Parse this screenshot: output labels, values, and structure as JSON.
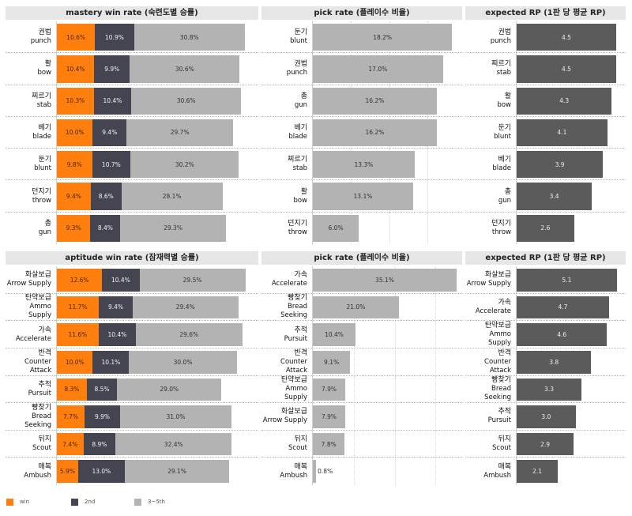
{
  "chart_data": [
    {
      "type": "bar",
      "subtype": "stacked-horizontal",
      "title": "mastery win rate (숙련도별 승률)",
      "categories": [
        {
          "ko": "권법",
          "en": "punch"
        },
        {
          "ko": "활",
          "en": "bow"
        },
        {
          "ko": "찌르기",
          "en": "stab"
        },
        {
          "ko": "베기",
          "en": "blade"
        },
        {
          "ko": "둔기",
          "en": "blunt"
        },
        {
          "ko": "던지기",
          "en": "throw"
        },
        {
          "ko": "총",
          "en": "gun"
        }
      ],
      "series": [
        {
          "name": "win",
          "values": [
            10.6,
            10.4,
            10.3,
            10.0,
            9.8,
            9.4,
            9.3
          ]
        },
        {
          "name": "2nd",
          "values": [
            10.9,
            9.9,
            10.4,
            9.4,
            10.7,
            8.6,
            8.4
          ]
        },
        {
          "name": "3~5th",
          "values": [
            30.8,
            30.6,
            30.6,
            29.7,
            30.2,
            28.1,
            29.3
          ]
        }
      ],
      "xlim": [
        0,
        55
      ]
    },
    {
      "type": "bar",
      "subtype": "horizontal",
      "title": "pick rate (플레이수 비율)",
      "categories": [
        {
          "ko": "둔기",
          "en": "blunt"
        },
        {
          "ko": "권법",
          "en": "punch"
        },
        {
          "ko": "총",
          "en": "gun"
        },
        {
          "ko": "베기",
          "en": "blade"
        },
        {
          "ko": "찌르기",
          "en": "stab"
        },
        {
          "ko": "활",
          "en": "bow"
        },
        {
          "ko": "던지기",
          "en": "throw"
        }
      ],
      "values": [
        18.2,
        17.0,
        16.2,
        16.2,
        13.3,
        13.1,
        6.0
      ],
      "xlim": [
        0,
        19
      ],
      "gridlines": [
        5,
        10,
        15
      ]
    },
    {
      "type": "bar",
      "subtype": "horizontal",
      "title": "expected RP (1판 당 평균 RP)",
      "categories": [
        {
          "ko": "권법",
          "en": "punch"
        },
        {
          "ko": "찌르기",
          "en": "stab"
        },
        {
          "ko": "활",
          "en": "bow"
        },
        {
          "ko": "둔기",
          "en": "blunt"
        },
        {
          "ko": "베기",
          "en": "blade"
        },
        {
          "ko": "총",
          "en": "gun"
        },
        {
          "ko": "던지기",
          "en": "throw"
        }
      ],
      "values": [
        4.5,
        4.5,
        4.3,
        4.1,
        3.9,
        3.4,
        2.6
      ],
      "xlim": [
        0,
        4.75
      ]
    },
    {
      "type": "bar",
      "subtype": "stacked-horizontal",
      "title": "aptitude win rate (잠재력별 승률)",
      "categories": [
        {
          "ko": "화살보급",
          "en": "Arrow Supply"
        },
        {
          "ko": "탄약보급",
          "en": "Ammo Supply"
        },
        {
          "ko": "가속",
          "en": "Accelerate"
        },
        {
          "ko": "반격",
          "en": "Counter Attack"
        },
        {
          "ko": "추적",
          "en": "Pursuit"
        },
        {
          "ko": "빵찾기",
          "en": "Bread Seeking"
        },
        {
          "ko": "뒤지",
          "en": "Scout"
        },
        {
          "ko": "매복",
          "en": "Ambush"
        }
      ],
      "series": [
        {
          "name": "win",
          "values": [
            12.6,
            11.7,
            11.6,
            10.0,
            8.3,
            7.7,
            7.4,
            5.9
          ]
        },
        {
          "name": "2nd",
          "values": [
            10.4,
            9.4,
            10.4,
            10.1,
            8.5,
            9.9,
            8.9,
            13.0
          ]
        },
        {
          "name": "3~5th",
          "values": [
            29.5,
            29.4,
            29.6,
            30.0,
            29.0,
            31.0,
            32.4,
            29.1
          ]
        }
      ],
      "xlim": [
        0,
        55
      ]
    },
    {
      "type": "bar",
      "subtype": "horizontal",
      "title": "pick rate (플레이수 비율)",
      "categories": [
        {
          "ko": "가속",
          "en": "Accelerate"
        },
        {
          "ko": "빵찾기",
          "en": "Bread Seeking"
        },
        {
          "ko": "추적",
          "en": "Pursuit"
        },
        {
          "ko": "반격",
          "en": "Counter Attack"
        },
        {
          "ko": "탄약보급",
          "en": "Ammo Supply"
        },
        {
          "ko": "화살보급",
          "en": "Arrow Supply"
        },
        {
          "ko": "뒤지",
          "en": "Scout"
        },
        {
          "ko": "매복",
          "en": "Ambush"
        }
      ],
      "values": [
        35.1,
        21.0,
        10.4,
        9.1,
        7.9,
        7.9,
        7.8,
        0.8
      ],
      "xlim": [
        0,
        35.5
      ],
      "gridlines": [
        10,
        20,
        30
      ]
    },
    {
      "type": "bar",
      "subtype": "horizontal",
      "title": "expected RP (1판 당 평균 RP)",
      "categories": [
        {
          "ko": "화살보급",
          "en": "Arrow Supply"
        },
        {
          "ko": "가속",
          "en": "Accelerate"
        },
        {
          "ko": "탄약보급",
          "en": "Ammo Supply"
        },
        {
          "ko": "반격",
          "en": "Counter Attack"
        },
        {
          "ko": "빵찾기",
          "en": "Bread Seeking"
        },
        {
          "ko": "추적",
          "en": "Pursuit"
        },
        {
          "ko": "뒤지",
          "en": "Scout"
        },
        {
          "ko": "매복",
          "en": "Ambush"
        }
      ],
      "values": [
        5.1,
        4.7,
        4.6,
        3.8,
        3.3,
        3.0,
        2.9,
        2.1
      ],
      "xlim": [
        0,
        5.35
      ]
    }
  ],
  "legend": [
    {
      "name": "win",
      "color": "#ff7f0e"
    },
    {
      "name": "2nd",
      "color": "#454552"
    },
    {
      "name": "3~5th",
      "color": "#b3b3b3"
    }
  ]
}
